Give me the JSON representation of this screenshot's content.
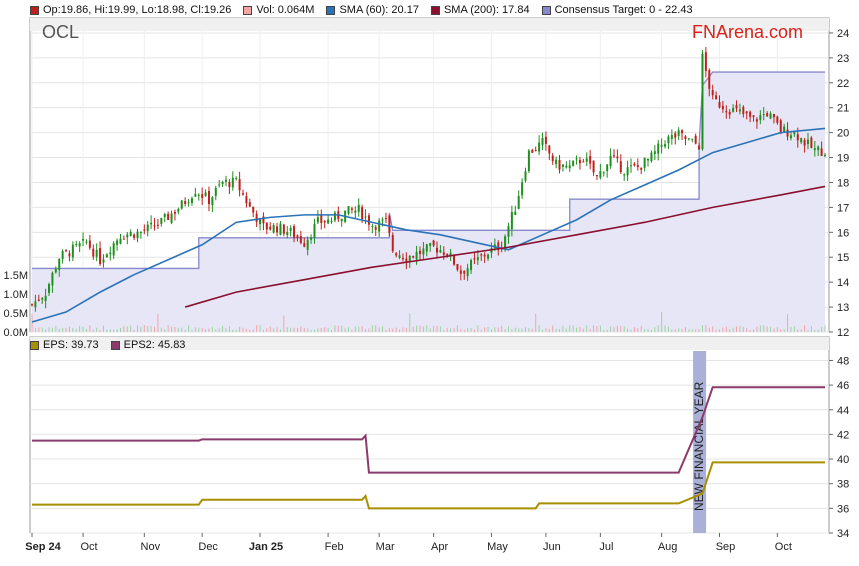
{
  "header": {
    "symbol": "OCL",
    "brand": "FNArena.com",
    "legend": [
      {
        "label": "Op:19.86, Hi:19.99, Lo:18.98, Cl:19.26",
        "color": "#c0201b"
      },
      {
        "label": "Vol: 0.064M",
        "color": "#f2a6a6"
      },
      {
        "label": "SMA (60): 20.17",
        "color": "#2b73b8"
      },
      {
        "label": "SMA (200): 17.84",
        "color": "#8b0f2e"
      },
      {
        "label": "Consensus Target: 0 - 22.43",
        "color": "#8888cc"
      }
    ]
  },
  "sub_legend": [
    {
      "label": "EPS: 39.73",
      "color": "#a88f00"
    },
    {
      "label": "EPS2: 45.83",
      "color": "#8b3a6b"
    }
  ],
  "annotation": "NEW FINANCIAL YEAR",
  "chart_data": [
    {
      "type": "candlestick",
      "title": "OCL",
      "x_labels": [
        "Sep 24",
        "Oct",
        "Nov",
        "Dec",
        "Jan 25",
        "Feb",
        "Mar",
        "Apr",
        "May",
        "Jun",
        "Jul",
        "Aug",
        "Sep",
        "Oct"
      ],
      "y_ticks": [
        12,
        13,
        14,
        15,
        16,
        17,
        18,
        19,
        20,
        21,
        22,
        23,
        24
      ],
      "ylim": [
        12,
        24.6
      ],
      "volume_ticks": [
        "0.0M",
        "0.5M",
        "1.0M",
        "1.5M"
      ],
      "price_path": [
        [
          0,
          13.1
        ],
        [
          4,
          13.6
        ],
        [
          8,
          15.0
        ],
        [
          12,
          15.3
        ],
        [
          16,
          15.6
        ],
        [
          20,
          14.9
        ],
        [
          26,
          15.9
        ],
        [
          32,
          16.0
        ],
        [
          38,
          16.4
        ],
        [
          44,
          17.1
        ],
        [
          48,
          17.7
        ],
        [
          52,
          17.3
        ],
        [
          56,
          18.0
        ],
        [
          60,
          18.0
        ],
        [
          64,
          17.0
        ],
        [
          68,
          16.2
        ],
        [
          72,
          16.2
        ],
        [
          76,
          16.0
        ],
        [
          80,
          15.6
        ],
        [
          84,
          16.4
        ],
        [
          88,
          16.5
        ],
        [
          92,
          16.8
        ],
        [
          96,
          16.9
        ],
        [
          100,
          16.3
        ],
        [
          104,
          16.4
        ],
        [
          106,
          15.3
        ],
        [
          110,
          15.0
        ],
        [
          114,
          15.2
        ],
        [
          118,
          15.4
        ],
        [
          122,
          15.2
        ],
        [
          126,
          14.4
        ],
        [
          130,
          14.8
        ],
        [
          134,
          15.2
        ],
        [
          138,
          15.5
        ],
        [
          142,
          17.0
        ],
        [
          146,
          19.2
        ],
        [
          150,
          19.6
        ],
        [
          154,
          18.7
        ],
        [
          158,
          18.6
        ],
        [
          162,
          19.0
        ],
        [
          166,
          18.2
        ],
        [
          170,
          19.0
        ],
        [
          174,
          18.5
        ],
        [
          178,
          18.6
        ],
        [
          182,
          19.0
        ],
        [
          186,
          19.7
        ],
        [
          190,
          19.9
        ],
        [
          194,
          19.6
        ],
        [
          196,
          19.5
        ],
        [
          197,
          23.0
        ],
        [
          200,
          21.3
        ],
        [
          204,
          21.0
        ],
        [
          208,
          20.8
        ],
        [
          212,
          20.5
        ],
        [
          216,
          20.8
        ],
        [
          220,
          20.1
        ],
        [
          224,
          20.0
        ],
        [
          228,
          19.5
        ],
        [
          230,
          19.3
        ],
        [
          233,
          19.26
        ]
      ],
      "series": [
        {
          "name": "SMA (60)",
          "color": "#2b73b8",
          "points": [
            [
              0,
              12.4
            ],
            [
              10,
              12.8
            ],
            [
              20,
              13.6
            ],
            [
              30,
              14.3
            ],
            [
              40,
              14.9
            ],
            [
              50,
              15.5
            ],
            [
              60,
              16.4
            ],
            [
              70,
              16.6
            ],
            [
              80,
              16.7
            ],
            [
              90,
              16.7
            ],
            [
              100,
              16.4
            ],
            [
              110,
              16.1
            ],
            [
              120,
              15.9
            ],
            [
              130,
              15.6
            ],
            [
              140,
              15.3
            ],
            [
              150,
              15.9
            ],
            [
              160,
              16.5
            ],
            [
              170,
              17.3
            ],
            [
              180,
              17.9
            ],
            [
              190,
              18.5
            ],
            [
              200,
              19.2
            ],
            [
              210,
              19.6
            ],
            [
              220,
              20.0
            ],
            [
              233,
              20.17
            ]
          ]
        },
        {
          "name": "SMA (200)",
          "color": "#8b0f2e",
          "points": [
            [
              45,
              13.0
            ],
            [
              60,
              13.6
            ],
            [
              80,
              14.1
            ],
            [
              100,
              14.6
            ],
            [
              120,
              15.0
            ],
            [
              140,
              15.4
            ],
            [
              160,
              15.9
            ],
            [
              180,
              16.4
            ],
            [
              200,
              17.0
            ],
            [
              220,
              17.5
            ],
            [
              233,
              17.84
            ]
          ]
        },
        {
          "name": "Consensus Target",
          "color": "#8888cc",
          "points": [
            [
              0,
              14.55
            ],
            [
              49,
              14.55
            ],
            [
              49,
              15.78
            ],
            [
              105,
              15.78
            ],
            [
              105,
              16.78
            ],
            [
              106,
              16.08
            ],
            [
              142,
              16.08
            ],
            [
              142,
              16.08
            ],
            [
              158,
              16.08
            ],
            [
              158,
              17.33
            ],
            [
              190,
              17.33
            ],
            [
              190,
              17.33
            ],
            [
              196,
              17.33
            ],
            [
              196,
              19.5
            ],
            [
              197,
              21.9
            ],
            [
              200,
              22.43
            ],
            [
              233,
              22.43
            ]
          ]
        }
      ]
    },
    {
      "type": "line",
      "y_ticks": [
        34,
        36,
        38,
        40,
        42,
        44,
        46,
        48
      ],
      "ylim": [
        34,
        48.2
      ],
      "series": [
        {
          "name": "EPS",
          "color": "#a88f00",
          "points": [
            [
              0,
              36.3
            ],
            [
              49,
              36.3
            ],
            [
              50,
              36.7
            ],
            [
              97,
              36.7
            ],
            [
              98,
              37.0
            ],
            [
              99,
              36.0
            ],
            [
              148,
              36.0
            ],
            [
              149,
              36.4
            ],
            [
              186,
              36.4
            ],
            [
              190,
              36.4
            ],
            [
              197,
              37.2
            ],
            [
              200,
              39.73
            ],
            [
              233,
              39.73
            ]
          ]
        },
        {
          "name": "EPS2",
          "color": "#8b3a6b",
          "points": [
            [
              0,
              41.5
            ],
            [
              49,
              41.5
            ],
            [
              50,
              41.6
            ],
            [
              97,
              41.6
            ],
            [
              98,
              41.9
            ],
            [
              99,
              38.9
            ],
            [
              186,
              38.9
            ],
            [
              190,
              38.9
            ],
            [
              197,
              43.4
            ],
            [
              200,
              45.83
            ],
            [
              233,
              45.83
            ]
          ]
        }
      ]
    }
  ]
}
